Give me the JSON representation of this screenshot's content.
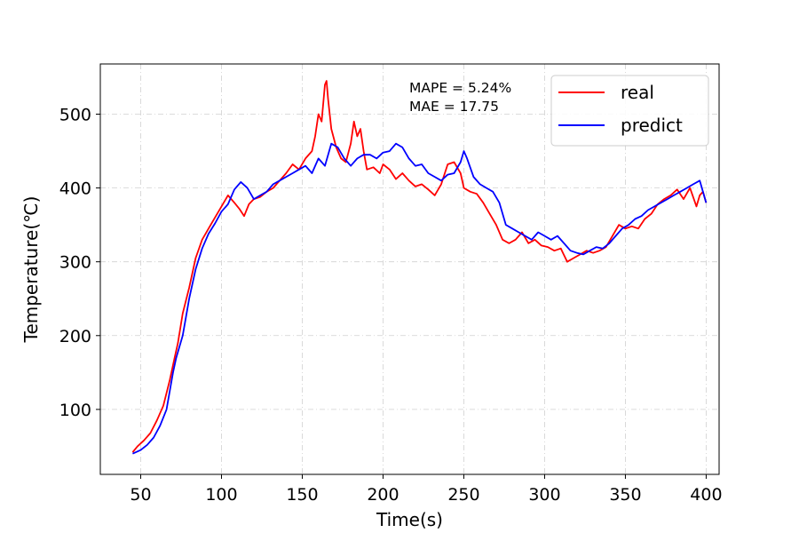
{
  "chart_data": {
    "type": "line",
    "xlabel": "Time(s)",
    "ylabel": "Temperature(℃)",
    "xlim": [
      25,
      408
    ],
    "ylim": [
      12,
      568
    ],
    "xticks": [
      50,
      100,
      150,
      200,
      250,
      300,
      350,
      400
    ],
    "yticks": [
      100,
      200,
      300,
      400,
      500
    ],
    "grid": true,
    "legend_position": "top-right",
    "annotations": [
      "MAPE = 5.24%",
      "MAE = 17.75"
    ],
    "series": [
      {
        "name": "real",
        "color": "#ff0000",
        "x": [
          45,
          48,
          52,
          56,
          60,
          64,
          68,
          71,
          73,
          76,
          80,
          84,
          88,
          92,
          96,
          100,
          104,
          108,
          111,
          114,
          117,
          120,
          124,
          128,
          132,
          136,
          140,
          144,
          148,
          152,
          156,
          158,
          160,
          162,
          164,
          165,
          166,
          168,
          171,
          174,
          177,
          180,
          182,
          184,
          186,
          188,
          190,
          194,
          198,
          200,
          204,
          208,
          212,
          216,
          220,
          224,
          228,
          232,
          236,
          240,
          244,
          248,
          250,
          254,
          258,
          262,
          266,
          270,
          274,
          278,
          282,
          286,
          290,
          294,
          298,
          302,
          306,
          310,
          314,
          318,
          322,
          326,
          330,
          334,
          338,
          342,
          346,
          350,
          354,
          358,
          362,
          366,
          370,
          374,
          378,
          382,
          386,
          390,
          394,
          396,
          398,
          400
        ],
        "values": [
          42,
          50,
          58,
          68,
          85,
          105,
          140,
          170,
          190,
          230,
          265,
          305,
          330,
          345,
          360,
          375,
          390,
          380,
          372,
          362,
          378,
          385,
          388,
          395,
          400,
          410,
          420,
          432,
          425,
          440,
          450,
          470,
          500,
          490,
          540,
          545,
          520,
          480,
          455,
          440,
          435,
          460,
          490,
          470,
          480,
          450,
          425,
          428,
          420,
          432,
          425,
          412,
          420,
          410,
          402,
          405,
          398,
          390,
          405,
          432,
          435,
          420,
          400,
          395,
          392,
          380,
          365,
          350,
          330,
          325,
          330,
          340,
          325,
          330,
          322,
          320,
          315,
          318,
          300,
          305,
          310,
          315,
          312,
          315,
          320,
          335,
          350,
          345,
          348,
          345,
          358,
          365,
          378,
          385,
          390,
          398,
          385,
          400,
          375,
          390,
          395,
          380
        ]
      },
      {
        "name": "predict",
        "color": "#0000ff",
        "x": [
          45,
          50,
          54,
          58,
          62,
          66,
          70,
          72,
          76,
          80,
          84,
          88,
          92,
          96,
          100,
          104,
          108,
          112,
          116,
          120,
          124,
          128,
          132,
          136,
          140,
          144,
          148,
          152,
          156,
          160,
          164,
          166,
          168,
          172,
          176,
          180,
          184,
          188,
          192,
          196,
          200,
          204,
          208,
          212,
          216,
          220,
          224,
          228,
          232,
          236,
          240,
          244,
          248,
          250,
          252,
          256,
          260,
          264,
          268,
          272,
          276,
          280,
          284,
          288,
          292,
          296,
          300,
          304,
          308,
          312,
          316,
          320,
          324,
          328,
          332,
          336,
          340,
          344,
          348,
          352,
          356,
          360,
          364,
          368,
          372,
          376,
          380,
          384,
          388,
          392,
          396,
          398,
          400
        ],
        "values": [
          40,
          45,
          52,
          62,
          78,
          100,
          150,
          170,
          200,
          250,
          290,
          318,
          338,
          352,
          368,
          378,
          398,
          408,
          400,
          385,
          390,
          395,
          405,
          410,
          415,
          420,
          425,
          430,
          420,
          440,
          430,
          445,
          460,
          455,
          440,
          430,
          440,
          445,
          445,
          440,
          448,
          450,
          460,
          455,
          440,
          430,
          432,
          420,
          415,
          410,
          418,
          420,
          435,
          450,
          440,
          415,
          405,
          400,
          395,
          380,
          350,
          345,
          340,
          335,
          330,
          340,
          335,
          330,
          335,
          325,
          315,
          312,
          310,
          315,
          320,
          318,
          325,
          335,
          345,
          350,
          358,
          362,
          370,
          375,
          380,
          385,
          390,
          395,
          400,
          405,
          410,
          395,
          380
        ]
      }
    ]
  }
}
